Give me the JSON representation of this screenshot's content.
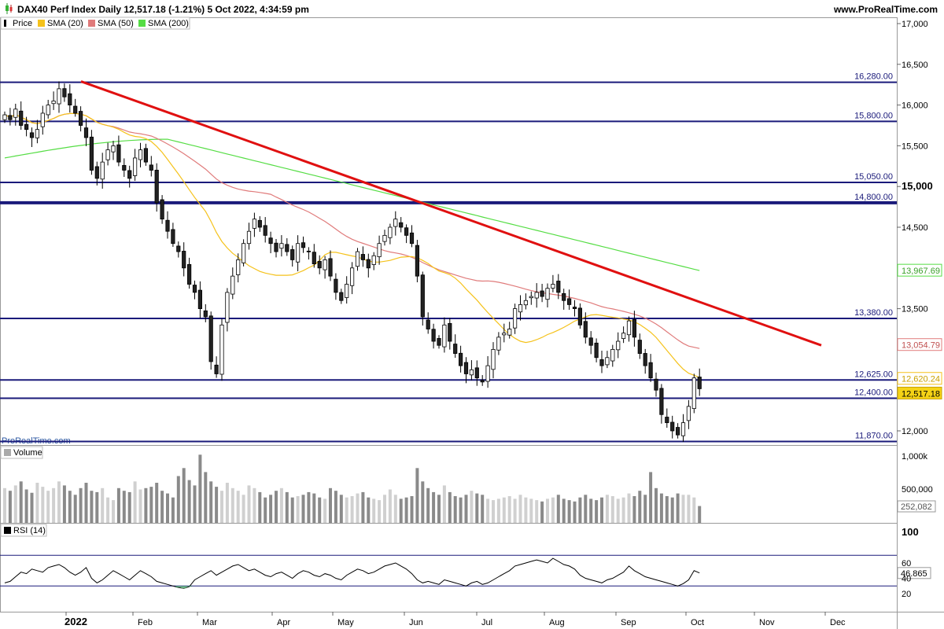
{
  "header": {
    "title": "DAX40 Perf Index Daily 12,517.18 (-1.21%) 5 Oct 2022, 4:34:59 pm",
    "brand": "www.ProRealTime.com",
    "watermark": "ProRealTime.com"
  },
  "legend": {
    "price": "Price",
    "sma20": "SMA (20)",
    "sma50": "SMA (50)",
    "sma200": "SMA (200)",
    "volume": "Volume",
    "rsi": "RSI (14)"
  },
  "colors": {
    "sma20": "#f5c21b",
    "sma50": "#e07b7b",
    "sma200": "#55dd44",
    "trendline": "#e01010",
    "level": "#1a1a7a",
    "up": "#ffffff",
    "down": "#222222",
    "current": "#f5d316"
  },
  "chart_data": {
    "type": "candlestick",
    "instrument": "DAX40 Perf Index",
    "timeframe": "Daily",
    "x_labels": [
      "2022",
      "Feb",
      "Mar",
      "Apr",
      "May",
      "Jun",
      "Jul",
      "Aug",
      "Sep",
      "Oct",
      "Nov",
      "Dec"
    ],
    "price_axis": {
      "ticks": [
        "17,000",
        "16,500",
        "16,000",
        "15,500",
        "15,000",
        "14,500",
        "13,500",
        "12,000"
      ],
      "range": [
        11800,
        17000
      ]
    },
    "levels": [
      {
        "label": "16,280.00",
        "value": 16280,
        "width": 2
      },
      {
        "label": "15,800.00",
        "value": 15800,
        "width": 2
      },
      {
        "label": "15,050.00",
        "value": 15050,
        "width": 2
      },
      {
        "label": "14,800.00",
        "value": 14800,
        "width": 4
      },
      {
        "label": "13,380.00",
        "value": 13380,
        "width": 2
      },
      {
        "label": "12,625.00",
        "value": 12625,
        "width": 2
      },
      {
        "label": "12,400.00",
        "value": 12400,
        "width": 2
      },
      {
        "label": "11,870.00",
        "value": 11870,
        "width": 2
      }
    ],
    "trendline": {
      "from": {
        "x": "3 Jan 2022",
        "y": 16290
      },
      "to": {
        "x": "15 Dec 2022",
        "y": 13050
      }
    },
    "indicators": {
      "sma20_value": "12,620.24",
      "sma50_value": "13,054.79",
      "sma200_value": "13,967.69",
      "last_price": "12,517.18"
    },
    "closes": [
      15880,
      15820,
      15950,
      15750,
      15700,
      15600,
      15700,
      15900,
      16000,
      16050,
      16200,
      16100,
      16000,
      15900,
      15750,
      15600,
      15200,
      15100,
      15300,
      15450,
      15500,
      15300,
      15200,
      15100,
      15350,
      15450,
      15300,
      15200,
      14800,
      14600,
      14450,
      14300,
      14200,
      14000,
      13800,
      13700,
      13500,
      13400,
      12850,
      12700,
      13300,
      13700,
      13900,
      14100,
      14300,
      14450,
      14600,
      14500,
      14400,
      14300,
      14200,
      14300,
      14200,
      14100,
      14300,
      14250,
      14200,
      14050,
      14000,
      14100,
      13900,
      13700,
      13600,
      13800,
      14000,
      14200,
      14100,
      14000,
      14150,
      14300,
      14400,
      14500,
      14600,
      14500,
      14400,
      14300,
      13900,
      13400,
      13250,
      13100,
      13050,
      13300,
      13100,
      12950,
      12800,
      12700,
      12750,
      12650,
      12600,
      12800,
      13000,
      13150,
      13200,
      13250,
      13500,
      13550,
      13600,
      13650,
      13700,
      13650,
      13750,
      13800,
      13700,
      13600,
      13550,
      13500,
      13300,
      13150,
      13050,
      12900,
      12800,
      12900,
      13000,
      13100,
      13200,
      13350,
      13150,
      12950,
      12800,
      12650,
      12500,
      12200,
      12100,
      12000,
      11950,
      12100,
      12300,
      12650,
      12517
    ],
    "volume": {
      "ticks": [
        "1,000k",
        "500,000"
      ],
      "last_value": "252,082",
      "values": [
        520,
        480,
        560,
        620,
        500,
        450,
        600,
        540,
        480,
        520,
        620,
        560,
        480,
        420,
        520,
        600,
        480,
        460,
        520,
        380,
        340,
        520,
        480,
        460,
        620,
        500,
        520,
        540,
        600,
        480,
        440,
        380,
        700,
        820,
        640,
        560,
        1020,
        760,
        620,
        540,
        480,
        600,
        520,
        480,
        420,
        560,
        520,
        460,
        380,
        420,
        480,
        520,
        460,
        380,
        400,
        420,
        460,
        440,
        380,
        360,
        520,
        480,
        420,
        380,
        400,
        440,
        460,
        380,
        360,
        340,
        420,
        500,
        420,
        360,
        380,
        400,
        820,
        620,
        520,
        460,
        420,
        560,
        460,
        400,
        380,
        420,
        480,
        440,
        420,
        360,
        340,
        360,
        380,
        400,
        360,
        420,
        380,
        360,
        340,
        320,
        360,
        380,
        420,
        360,
        340,
        320,
        380,
        420,
        360,
        340,
        380,
        420,
        400,
        360,
        380,
        440,
        400,
        480,
        420,
        760,
        520,
        440,
        400,
        380,
        440,
        420,
        420,
        380,
        252
      ]
    },
    "rsi": {
      "ticks": [
        "100",
        "60",
        "40",
        "20"
      ],
      "bands": [
        70,
        30
      ],
      "last_value": "46.865",
      "values": [
        34,
        36,
        42,
        48,
        46,
        52,
        50,
        48,
        54,
        56,
        58,
        54,
        48,
        44,
        48,
        54,
        40,
        34,
        38,
        44,
        50,
        46,
        42,
        38,
        44,
        50,
        46,
        42,
        36,
        34,
        32,
        30,
        28,
        27,
        29,
        38,
        42,
        46,
        50,
        44,
        48,
        52,
        56,
        58,
        54,
        50,
        52,
        48,
        44,
        42,
        46,
        48,
        44,
        40,
        46,
        50,
        48,
        44,
        42,
        46,
        44,
        40,
        38,
        44,
        48,
        52,
        50,
        46,
        48,
        52,
        56,
        58,
        60,
        56,
        52,
        46,
        38,
        34,
        36,
        34,
        32,
        38,
        36,
        34,
        32,
        30,
        34,
        36,
        32,
        34,
        38,
        42,
        46,
        50,
        56,
        58,
        60,
        62,
        64,
        62,
        60,
        66,
        62,
        58,
        56,
        52,
        44,
        40,
        38,
        36,
        34,
        38,
        40,
        44,
        48,
        56,
        50,
        46,
        42,
        40,
        38,
        36,
        34,
        32,
        30,
        33,
        38,
        50,
        47
      ]
    }
  }
}
